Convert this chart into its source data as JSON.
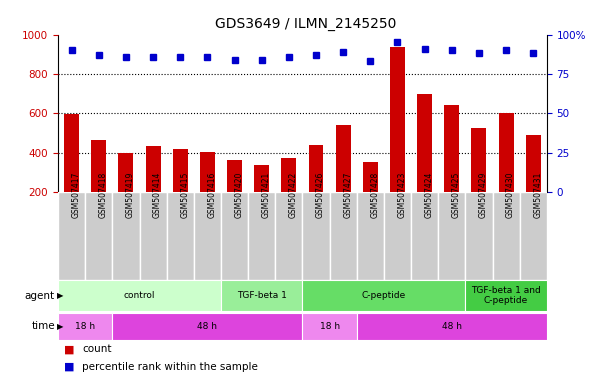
{
  "title": "GDS3649 / ILMN_2145250",
  "samples": [
    "GSM507417",
    "GSM507418",
    "GSM507419",
    "GSM507414",
    "GSM507415",
    "GSM507416",
    "GSM507420",
    "GSM507421",
    "GSM507422",
    "GSM507426",
    "GSM507427",
    "GSM507428",
    "GSM507423",
    "GSM507424",
    "GSM507425",
    "GSM507429",
    "GSM507430",
    "GSM507431"
  ],
  "counts": [
    595,
    465,
    400,
    435,
    420,
    405,
    365,
    335,
    375,
    440,
    540,
    350,
    935,
    700,
    640,
    525,
    600,
    490
  ],
  "percentiles": [
    90,
    87,
    86,
    86,
    86,
    86,
    84,
    84,
    86,
    87,
    89,
    83,
    95,
    91,
    90,
    88,
    90,
    88
  ],
  "ylim_left": [
    200,
    1000
  ],
  "ylim_right": [
    0,
    100
  ],
  "yticks_left": [
    200,
    400,
    600,
    800,
    1000
  ],
  "yticks_right": [
    0,
    25,
    50,
    75,
    100
  ],
  "bar_color": "#cc0000",
  "dot_color": "#0000cc",
  "agent_groups": [
    {
      "label": "control",
      "start": 0,
      "end": 6,
      "color": "#ccffcc"
    },
    {
      "label": "TGF-beta 1",
      "start": 6,
      "end": 9,
      "color": "#99ee99"
    },
    {
      "label": "C-peptide",
      "start": 9,
      "end": 15,
      "color": "#66dd66"
    },
    {
      "label": "TGF-beta 1 and\nC-peptide",
      "start": 15,
      "end": 18,
      "color": "#44cc44"
    }
  ],
  "time_groups": [
    {
      "label": "18 h",
      "start": 0,
      "end": 2,
      "color": "#ee88ee"
    },
    {
      "label": "48 h",
      "start": 2,
      "end": 9,
      "color": "#dd44dd"
    },
    {
      "label": "18 h",
      "start": 9,
      "end": 11,
      "color": "#ee88ee"
    },
    {
      "label": "48 h",
      "start": 11,
      "end": 18,
      "color": "#dd44dd"
    }
  ],
  "legend_count_color": "#cc0000",
  "legend_pct_color": "#0000cc",
  "background_color": "#ffffff",
  "cell_color": "#cccccc",
  "cell_border_color": "#ffffff"
}
